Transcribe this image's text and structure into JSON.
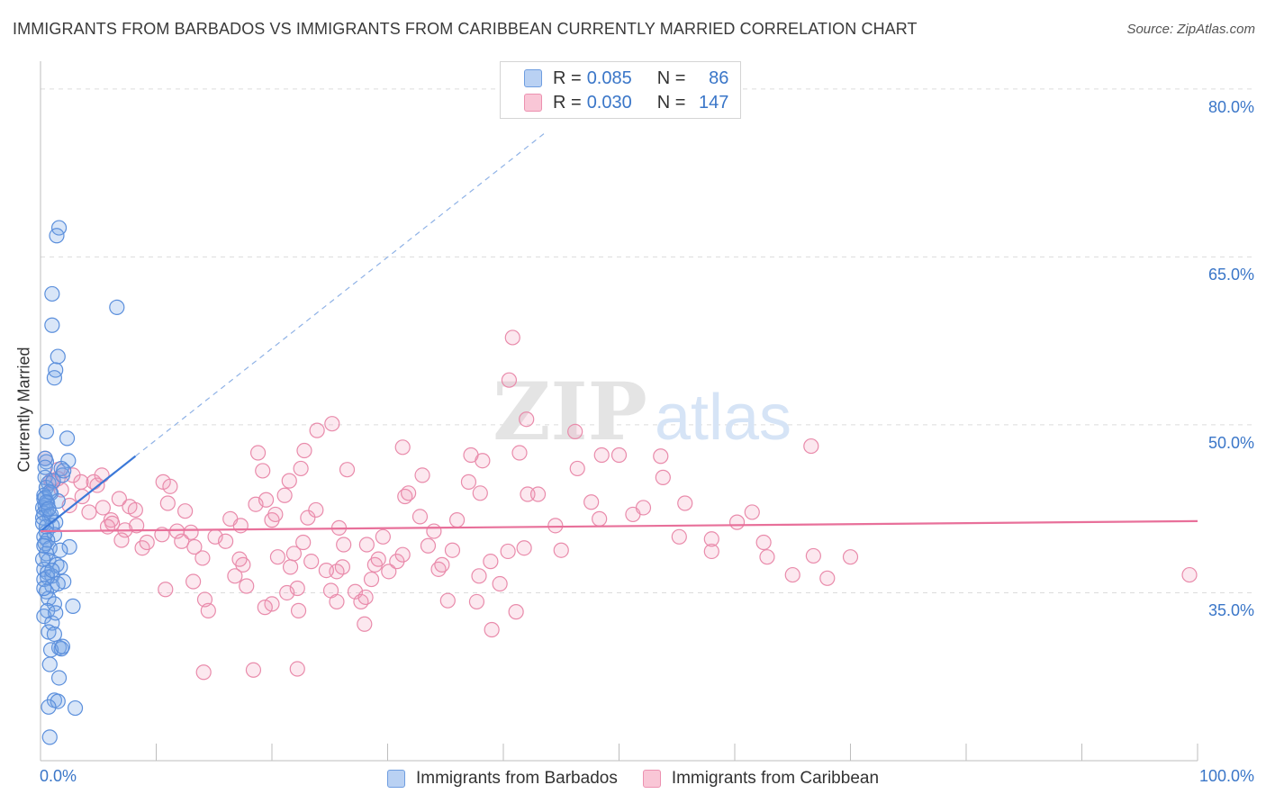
{
  "title": "IMMIGRANTS FROM BARBADOS VS IMMIGRANTS FROM CARIBBEAN CURRENTLY MARRIED CORRELATION CHART",
  "source": "Source: ZipAtlas.com",
  "watermark": {
    "zip": "ZIP",
    "atlas": "atlas"
  },
  "legend": {
    "r_label": "R =",
    "n_label": "N =",
    "series": [
      {
        "r": "0.085",
        "n": "86",
        "fill": "#b9d1f3",
        "stroke": "#6e9de0"
      },
      {
        "r": "0.030",
        "n": "147",
        "fill": "#f9c6d6",
        "stroke": "#ec91b0"
      }
    ]
  },
  "colors": {
    "blue_point_fill": "rgba(120,165,230,0.28)",
    "blue_point_stroke": "#5b8fdc",
    "pink_point_fill": "rgba(240,150,180,0.22)",
    "pink_point_stroke": "#e98bab",
    "blue_line": "#3b78d8",
    "pink_line": "#e8709a",
    "grid": "#dcdcdc",
    "tick_text": "#3a76c8"
  },
  "chart_data": {
    "type": "scatter",
    "title": "IMMIGRANTS FROM BARBADOS VS IMMIGRANTS FROM CARIBBEAN CURRENTLY MARRIED CORRELATION CHART",
    "xlabel": "",
    "ylabel": "Currently Married",
    "xlim": [
      0,
      100
    ],
    "ylim": [
      20,
      82
    ],
    "x_tick_labels": [
      {
        "value": 0,
        "label": "0.0%"
      },
      {
        "value": 100,
        "label": "100.0%"
      }
    ],
    "y_tick_labels": [
      {
        "value": 35,
        "label": "35.0%"
      },
      {
        "value": 50,
        "label": "50.0%"
      },
      {
        "value": 65,
        "label": "65.0%"
      },
      {
        "value": 80,
        "label": "80.0%"
      }
    ],
    "x_minor_ticks": [
      0,
      10,
      20,
      30,
      40,
      50,
      60,
      70,
      80,
      90,
      100
    ],
    "grid": true,
    "series": [
      {
        "name": "Immigrants from Barbados",
        "r": 0.085,
        "n": 86,
        "trend_solid": {
          "x": [
            0,
            8.2
          ],
          "y": [
            40.5,
            47.2
          ]
        },
        "trend_dashed": {
          "x": [
            8.2,
            43.5
          ],
          "y": [
            47.2,
            76.0
          ]
        },
        "points": [
          [
            1.6,
            67.6
          ],
          [
            1.4,
            66.9
          ],
          [
            1.0,
            61.7
          ],
          [
            6.6,
            60.5
          ],
          [
            1.0,
            58.9
          ],
          [
            1.5,
            56.1
          ],
          [
            1.3,
            54.9
          ],
          [
            1.2,
            54.2
          ],
          [
            0.5,
            49.4
          ],
          [
            2.3,
            48.8
          ],
          [
            2.4,
            46.8
          ],
          [
            0.5,
            46.7
          ],
          [
            1.8,
            46.1
          ],
          [
            1.9,
            45.5
          ],
          [
            2.0,
            45.9
          ],
          [
            0.4,
            45.3
          ],
          [
            0.7,
            44.8
          ],
          [
            0.5,
            44.4
          ],
          [
            0.9,
            43.9
          ],
          [
            0.3,
            43.7
          ],
          [
            0.3,
            43.4
          ],
          [
            0.6,
            43.0
          ],
          [
            0.4,
            42.8
          ],
          [
            1.5,
            43.2
          ],
          [
            0.2,
            42.6
          ],
          [
            0.5,
            42.4
          ],
          [
            0.3,
            42.1
          ],
          [
            0.8,
            41.8
          ],
          [
            0.2,
            41.7
          ],
          [
            1.3,
            41.3
          ],
          [
            1.0,
            41.0
          ],
          [
            0.5,
            40.4
          ],
          [
            1.2,
            40.2
          ],
          [
            0.3,
            40.0
          ],
          [
            0.6,
            39.7
          ],
          [
            0.4,
            39.4
          ],
          [
            2.5,
            39.1
          ],
          [
            0.8,
            39.0
          ],
          [
            1.7,
            38.8
          ],
          [
            0.5,
            38.5
          ],
          [
            0.7,
            37.9
          ],
          [
            1.4,
            37.5
          ],
          [
            1.7,
            37.3
          ],
          [
            0.3,
            37.1
          ],
          [
            0.6,
            36.8
          ],
          [
            1.0,
            36.5
          ],
          [
            0.3,
            36.2
          ],
          [
            2.0,
            36.0
          ],
          [
            1.0,
            35.6
          ],
          [
            1.5,
            35.8
          ],
          [
            0.5,
            35.1
          ],
          [
            0.7,
            34.5
          ],
          [
            1.2,
            34.0
          ],
          [
            2.8,
            33.8
          ],
          [
            0.6,
            33.4
          ],
          [
            0.3,
            32.9
          ],
          [
            1.0,
            32.3
          ],
          [
            0.7,
            31.5
          ],
          [
            1.2,
            31.3
          ],
          [
            1.6,
            30.1
          ],
          [
            1.8,
            30.0
          ],
          [
            0.9,
            29.9
          ],
          [
            0.8,
            28.6
          ],
          [
            1.6,
            27.4
          ],
          [
            1.2,
            25.4
          ],
          [
            1.5,
            25.3
          ],
          [
            0.7,
            24.8
          ],
          [
            3.0,
            24.7
          ],
          [
            0.8,
            22.1
          ],
          [
            0.4,
            43.5
          ],
          [
            0.9,
            42.0
          ],
          [
            0.5,
            40.9
          ],
          [
            0.2,
            38.0
          ],
          [
            1.1,
            45.0
          ],
          [
            0.4,
            47.0
          ],
          [
            0.6,
            36.4
          ],
          [
            1.3,
            33.2
          ],
          [
            0.2,
            41.2
          ],
          [
            0.8,
            44.0
          ],
          [
            0.3,
            39.2
          ],
          [
            1.9,
            30.2
          ],
          [
            0.5,
            43.1
          ],
          [
            0.7,
            42.5
          ],
          [
            0.4,
            46.2
          ],
          [
            1.0,
            37.0
          ],
          [
            0.3,
            35.4
          ]
        ]
      },
      {
        "name": "Immigrants from Caribbean",
        "r": 0.03,
        "n": 147,
        "trend_solid": {
          "x": [
            0,
            100
          ],
          "y": [
            40.5,
            41.4
          ]
        },
        "points": [
          [
            0.4,
            47.0
          ],
          [
            1.5,
            46.0
          ],
          [
            2.8,
            45.5
          ],
          [
            1.0,
            44.8
          ],
          [
            1.8,
            44.2
          ],
          [
            0.9,
            45.0
          ],
          [
            1.5,
            45.2
          ],
          [
            3.5,
            44.9
          ],
          [
            4.6,
            44.9
          ],
          [
            5.3,
            45.5
          ],
          [
            4.9,
            44.6
          ],
          [
            3.6,
            43.6
          ],
          [
            2.5,
            42.8
          ],
          [
            4.2,
            42.2
          ],
          [
            5.4,
            42.6
          ],
          [
            6.1,
            41.5
          ],
          [
            6.8,
            43.4
          ],
          [
            7.7,
            42.7
          ],
          [
            8.2,
            42.4
          ],
          [
            8.3,
            41.0
          ],
          [
            7.3,
            40.6
          ],
          [
            6.2,
            41.2
          ],
          [
            5.8,
            40.9
          ],
          [
            7.0,
            39.7
          ],
          [
            8.8,
            39.0
          ],
          [
            9.2,
            39.5
          ],
          [
            10.5,
            40.2
          ],
          [
            11.0,
            43.0
          ],
          [
            10.6,
            44.9
          ],
          [
            11.2,
            44.5
          ],
          [
            12.5,
            42.3
          ],
          [
            12.2,
            39.6
          ],
          [
            11.8,
            40.5
          ],
          [
            13.0,
            40.4
          ],
          [
            13.3,
            39.1
          ],
          [
            14.0,
            38.1
          ],
          [
            13.2,
            36.0
          ],
          [
            10.8,
            35.3
          ],
          [
            14.5,
            33.4
          ],
          [
            14.2,
            34.4
          ],
          [
            14.1,
            27.9
          ],
          [
            15.1,
            40.0
          ],
          [
            16.0,
            39.6
          ],
          [
            16.4,
            41.6
          ],
          [
            17.3,
            41.0
          ],
          [
            17.5,
            37.5
          ],
          [
            17.2,
            38.0
          ],
          [
            17.8,
            35.6
          ],
          [
            18.6,
            42.9
          ],
          [
            18.8,
            47.5
          ],
          [
            19.5,
            43.3
          ],
          [
            19.2,
            45.9
          ],
          [
            20.0,
            41.5
          ],
          [
            20.3,
            42.0
          ],
          [
            20.5,
            38.2
          ],
          [
            20.0,
            34.0
          ],
          [
            19.4,
            33.7
          ],
          [
            18.4,
            28.1
          ],
          [
            21.1,
            43.7
          ],
          [
            21.5,
            45.0
          ],
          [
            22.8,
            47.7
          ],
          [
            22.5,
            46.1
          ],
          [
            23.1,
            41.7
          ],
          [
            22.7,
            39.5
          ],
          [
            21.9,
            38.5
          ],
          [
            21.6,
            37.3
          ],
          [
            23.4,
            37.8
          ],
          [
            22.2,
            35.4
          ],
          [
            21.3,
            35.0
          ],
          [
            22.3,
            33.4
          ],
          [
            22.2,
            28.2
          ],
          [
            23.9,
            49.5
          ],
          [
            25.2,
            50.1
          ],
          [
            25.8,
            40.8
          ],
          [
            26.2,
            39.3
          ],
          [
            26.1,
            37.3
          ],
          [
            25.6,
            36.9
          ],
          [
            24.7,
            37.0
          ],
          [
            25.1,
            35.2
          ],
          [
            25.6,
            34.2
          ],
          [
            27.2,
            35.1
          ],
          [
            27.7,
            34.2
          ],
          [
            28.1,
            34.6
          ],
          [
            28.0,
            32.2
          ],
          [
            28.2,
            39.3
          ],
          [
            28.9,
            37.5
          ],
          [
            29.6,
            40.0
          ],
          [
            29.2,
            38.0
          ],
          [
            30.1,
            36.9
          ],
          [
            30.8,
            37.8
          ],
          [
            31.3,
            38.4
          ],
          [
            31.5,
            43.6
          ],
          [
            31.8,
            43.9
          ],
          [
            31.3,
            48.0
          ],
          [
            32.8,
            41.8
          ],
          [
            33.5,
            39.2
          ],
          [
            34.4,
            37.1
          ],
          [
            34.7,
            37.5
          ],
          [
            35.6,
            38.8
          ],
          [
            35.2,
            34.3
          ],
          [
            37.0,
            44.9
          ],
          [
            37.2,
            47.3
          ],
          [
            38.2,
            46.8
          ],
          [
            38.0,
            43.9
          ],
          [
            37.9,
            36.5
          ],
          [
            38.9,
            37.8
          ],
          [
            37.7,
            34.2
          ],
          [
            40.8,
            57.8
          ],
          [
            40.5,
            54.0
          ],
          [
            42.0,
            50.5
          ],
          [
            41.4,
            47.5
          ],
          [
            42.1,
            43.8
          ],
          [
            41.8,
            39.0
          ],
          [
            40.4,
            38.7
          ],
          [
            39.7,
            35.8
          ],
          [
            41.1,
            33.3
          ],
          [
            39.0,
            31.7
          ],
          [
            43.0,
            43.8
          ],
          [
            44.5,
            41.0
          ],
          [
            46.2,
            49.4
          ],
          [
            46.4,
            46.1
          ],
          [
            47.6,
            43.1
          ],
          [
            48.5,
            47.3
          ],
          [
            48.3,
            41.6
          ],
          [
            50.0,
            47.3
          ],
          [
            51.2,
            42.0
          ],
          [
            52.1,
            42.6
          ],
          [
            53.8,
            45.3
          ],
          [
            53.6,
            47.2
          ],
          [
            55.7,
            43.0
          ],
          [
            55.2,
            40.0
          ],
          [
            58.0,
            38.7
          ],
          [
            61.5,
            42.2
          ],
          [
            62.8,
            38.2
          ],
          [
            65.0,
            36.6
          ],
          [
            66.6,
            48.1
          ],
          [
            68.0,
            36.3
          ],
          [
            66.8,
            38.3
          ],
          [
            70.0,
            38.2
          ],
          [
            99.3,
            36.6
          ],
          [
            58.0,
            39.8
          ],
          [
            45.0,
            38.8
          ],
          [
            60.2,
            41.3
          ],
          [
            62.5,
            39.5
          ],
          [
            26.5,
            46.0
          ],
          [
            33.0,
            45.5
          ],
          [
            36.0,
            41.5
          ],
          [
            28.6,
            36.2
          ],
          [
            16.8,
            36.5
          ],
          [
            34.0,
            40.5
          ],
          [
            23.8,
            42.4
          ]
        ]
      }
    ]
  },
  "bottom_legend": [
    "Immigrants from Barbados",
    "Immigrants from Caribbean"
  ]
}
